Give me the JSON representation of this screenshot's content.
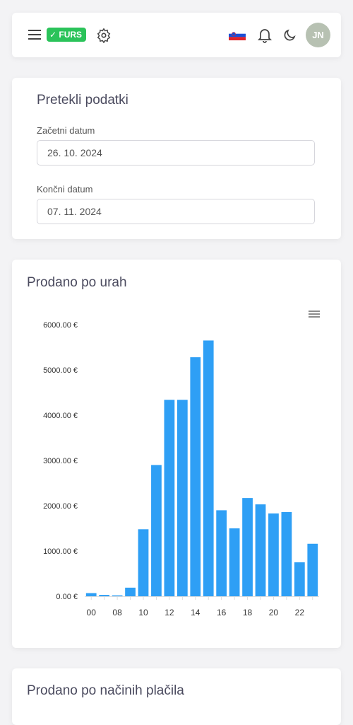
{
  "header": {
    "badge": "FURS",
    "avatar": "JN"
  },
  "filter": {
    "title": "Pretekli podatki",
    "fields": [
      {
        "label": "Začetni datum",
        "value": "26. 10. 2024"
      },
      {
        "label": "Končni datum",
        "value": "07. 11. 2024"
      }
    ]
  },
  "chart_data": {
    "type": "bar",
    "title": "Prodano po urah",
    "categories": [
      "00",
      null,
      "08",
      null,
      "10",
      null,
      "12",
      null,
      "14",
      null,
      "16",
      null,
      "18",
      null,
      "20",
      null,
      "22",
      null
    ],
    "values": [
      70,
      30,
      20,
      190,
      1480,
      2900,
      4340,
      4340,
      5280,
      5650,
      1900,
      1500,
      2170,
      2030,
      1830,
      1860,
      750,
      1160
    ],
    "color": "#2e9ff5",
    "ylim": [
      0,
      6000
    ],
    "yticks": [
      {
        "value": 0,
        "label": "0.00 €"
      },
      {
        "value": 1000,
        "label": "1000.00 €"
      },
      {
        "value": 2000,
        "label": "2000.00 €"
      },
      {
        "value": 3000,
        "label": "3000.00 €"
      },
      {
        "value": 4000,
        "label": "4000.00 €"
      },
      {
        "value": 5000,
        "label": "5000.00 €"
      },
      {
        "value": 6000,
        "label": "6000.00 €"
      }
    ],
    "grid": false
  },
  "next_card": {
    "title": "Prodano po načinih plačila"
  }
}
